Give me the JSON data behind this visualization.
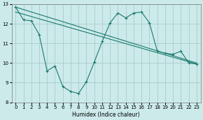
{
  "xlabel": "Humidex (Indice chaleur)",
  "background_color": "#cceaea",
  "grid_color": "#aacccc",
  "line_color": "#1a7a6e",
  "xlim": [
    -0.5,
    23.5
  ],
  "ylim": [
    8,
    13
  ],
  "yticks": [
    8,
    9,
    10,
    11,
    12,
    13
  ],
  "xticks": [
    0,
    1,
    2,
    3,
    4,
    5,
    6,
    7,
    8,
    9,
    10,
    11,
    12,
    13,
    14,
    15,
    16,
    17,
    18,
    19,
    20,
    21,
    22,
    23
  ],
  "series1_x": [
    0,
    1,
    2,
    3,
    4,
    5,
    6,
    7,
    8,
    9,
    10,
    11,
    12,
    13,
    14,
    15,
    16,
    17,
    18,
    19,
    20,
    21,
    22,
    23
  ],
  "series1_y": [
    12.85,
    12.2,
    12.15,
    11.45,
    9.6,
    9.85,
    8.8,
    8.55,
    8.45,
    9.05,
    10.05,
    11.1,
    12.05,
    12.55,
    12.3,
    12.55,
    12.6,
    12.05,
    10.6,
    10.5,
    10.45,
    10.6,
    10.0,
    9.95
  ],
  "line2_x0": 0,
  "line2_y0": 12.85,
  "line2_x1": 23,
  "line2_y1": 10.0,
  "line3_x0": 0,
  "line3_y0": 12.6,
  "line3_x1": 23,
  "line3_y1": 9.95
}
